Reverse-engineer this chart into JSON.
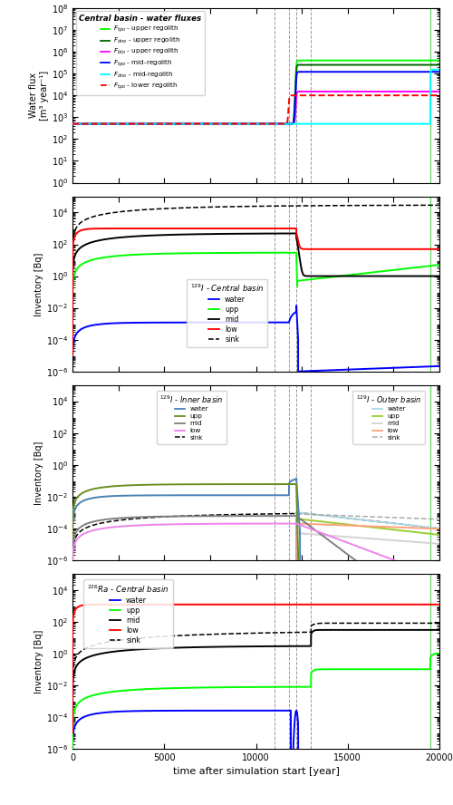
{
  "xlabel": "time after simulation start [year]",
  "xlim": [
    0,
    20000
  ],
  "xticks": [
    0,
    5000,
    10000,
    15000,
    20000
  ],
  "vlines_gray": [
    11000,
    11800,
    12200,
    13000
  ],
  "vline_green": 19500,
  "panel1_ylabel": "Water flux\n[m³ year⁻¹]",
  "panel_ylabel": "Inventory [Bq]",
  "p1_legend_title": "Central basin - water fluxes",
  "p2_legend_title": "^{129}I - Central basin",
  "p3a_legend_title": "^{129}I - Inner basin",
  "p3b_legend_title": "^{129}I - Outer basin",
  "p4_legend_title": "^{226}Ra - Central basin"
}
